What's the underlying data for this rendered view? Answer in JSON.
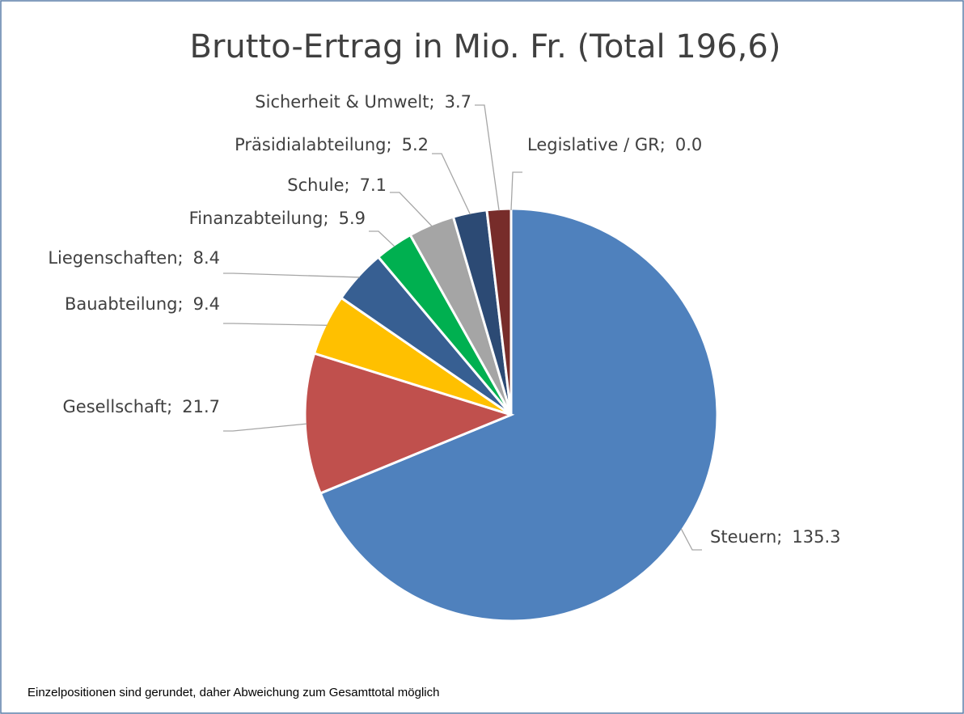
{
  "chart_data": {
    "type": "pie",
    "title": "Brutto-Ertrag in Mio. Fr. (Total 196,6)",
    "categories": [
      "Steuern",
      "Gesellschaft",
      "Bauabteilung",
      "Liegenschaften",
      "Finanzabteilung",
      "Schule",
      "Präsidialabteilung",
      "Sicherheit & Umwelt",
      "Legislative / GR"
    ],
    "values": [
      135.3,
      21.7,
      9.4,
      8.4,
      5.9,
      7.1,
      5.2,
      3.7,
      0
    ],
    "value_labels": [
      "135.3",
      "21.7",
      "9.4",
      "8.4",
      "5.9",
      "7.1",
      "5.2",
      "3.7",
      "0.0"
    ],
    "colors": [
      "#4f81bd",
      "#c0504d",
      "#ffc000",
      "#375f92",
      "#00b050",
      "#a5a5a5",
      "#2c4a74",
      "#772c2a",
      "#7f7f7f"
    ],
    "separator": ";",
    "footnote": "Einzelpositionen sind gerundet, daher Abweichung zum Gesamttotal möglich"
  }
}
